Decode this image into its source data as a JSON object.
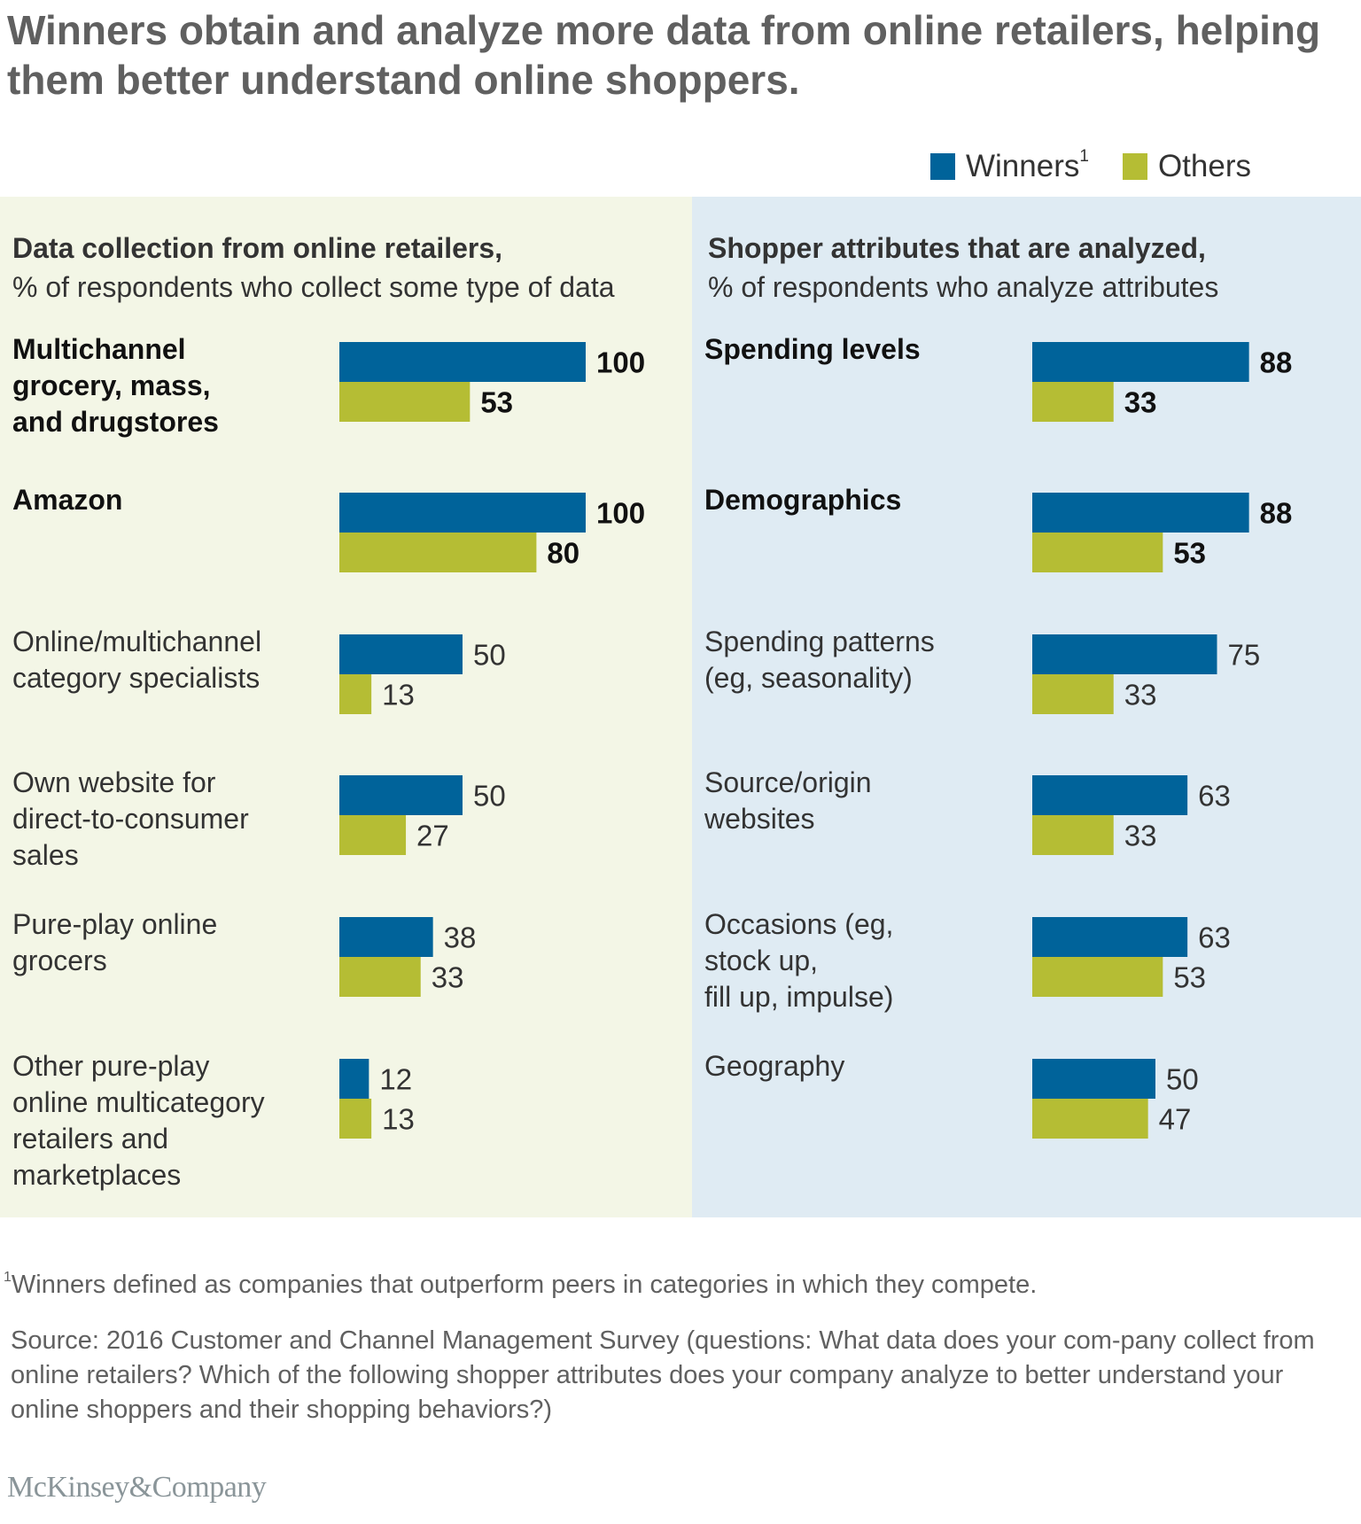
{
  "title": "Winners obtain and analyze more data from online retailers, helping them better understand online shoppers.",
  "legend": {
    "winners_label": "Winners",
    "winners_sup": "1",
    "others_label": "Others"
  },
  "colors": {
    "winners": "#00639a",
    "others": "#b5bd34",
    "left_panel_bg": "#f3f6e6",
    "right_panel_bg": "#dfebf3"
  },
  "left_panel": {
    "heading_bold": "Data collection from online retailers,",
    "heading_sub": "% of respondents who collect some type of data"
  },
  "right_panel": {
    "heading_bold": "Shopper attributes that are analyzed,",
    "heading_sub": "% of respondents who analyze attributes"
  },
  "footnote": {
    "marker": "1",
    "text": "Winners defined as companies that outperform peers in categories in which they compete."
  },
  "source": "Source: 2016 Customer and Channel Management Survey (questions: What data does your com-pany collect from online retailers? Which of the following shopper attributes does your company analyze to better understand your online shoppers and their shopping behaviors?)",
  "logo": "McKinsey&Company",
  "chart_data": [
    {
      "type": "bar",
      "orientation": "horizontal",
      "title": "Data collection from online retailers, % of respondents who collect some type of data",
      "categories": [
        "Multichannel grocery, mass, and drugstores",
        "Amazon",
        "Online/multichannel category specialists",
        "Own website for direct-to-consumer sales",
        "Pure-play online grocers",
        "Other pure-play online multicategory retailers and marketplaces"
      ],
      "category_lines": [
        [
          "Multichannel",
          "grocery, mass,",
          "and drugstores"
        ],
        [
          "Amazon"
        ],
        [
          "Online/multichannel",
          "category specialists"
        ],
        [
          "Own website for",
          "direct-to-consumer",
          "sales"
        ],
        [
          "Pure-play online",
          "grocers"
        ],
        [
          "Other pure-play",
          "online multicategory",
          "retailers and",
          "marketplaces"
        ]
      ],
      "emphasized": [
        true,
        true,
        false,
        false,
        false,
        false
      ],
      "series": [
        {
          "name": "Winners",
          "values": [
            100,
            100,
            50,
            50,
            38,
            12
          ]
        },
        {
          "name": "Others",
          "values": [
            53,
            80,
            13,
            27,
            33,
            13
          ]
        }
      ],
      "xlim": [
        0,
        100
      ],
      "grid": false,
      "legend": "top-right"
    },
    {
      "type": "bar",
      "orientation": "horizontal",
      "title": "Shopper attributes that are analyzed, % of respondents who analyze attributes",
      "categories": [
        "Spending levels",
        "Demographics",
        "Spending patterns (eg, seasonality)",
        "Source/origin websites",
        "Occasions (eg, stock up, fill up, impulse)",
        "Geography"
      ],
      "category_lines": [
        [
          "Spending levels"
        ],
        [
          "Demographics"
        ],
        [
          "Spending patterns",
          "(eg, seasonality)"
        ],
        [
          "Source/origin",
          "websites"
        ],
        [
          "Occasions (eg,",
          "stock up,",
          "fill up, impulse)"
        ],
        [
          "Geography"
        ]
      ],
      "emphasized": [
        true,
        true,
        false,
        false,
        false,
        false
      ],
      "series": [
        {
          "name": "Winners",
          "values": [
            88,
            88,
            75,
            63,
            63,
            50
          ]
        },
        {
          "name": "Others",
          "values": [
            33,
            53,
            33,
            33,
            53,
            47
          ]
        }
      ],
      "xlim": [
        0,
        100
      ],
      "grid": false,
      "legend": "top-right"
    }
  ]
}
